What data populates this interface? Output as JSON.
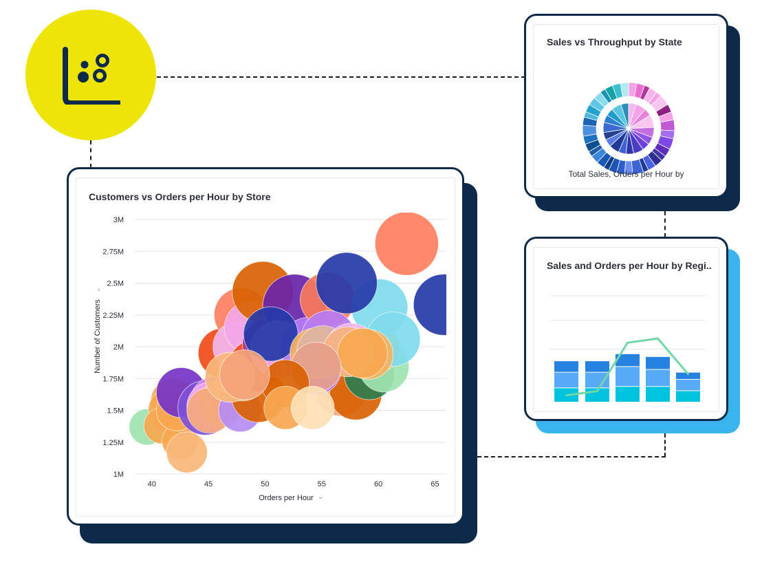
{
  "colors": {
    "badge": "#ede40a",
    "card_border": "#0d2a4a",
    "shadow_navy": "#0d2a4a",
    "shadow_sky": "#3ab4ec"
  },
  "badge": {
    "icon": "scatter-chart-icon"
  },
  "scatter_card": {
    "title": "Customers vs Orders per Hour by Store",
    "x_axis_title": "Orders per Hour",
    "y_axis_title": "Number of Customers",
    "axis_menu_icon": "chevron-down-icon"
  },
  "donut_card": {
    "title": "Sales vs Throughput by State",
    "caption": "Total Sales, Orders per Hour by"
  },
  "bar_card": {
    "title": "Sales and Orders per Hour by Regi.."
  },
  "chart_data": [
    {
      "type": "scatter",
      "title": "Customers vs Orders per Hour by Store",
      "xlabel": "Orders per Hour",
      "ylabel": "Number of Customers",
      "xlim": [
        38.5,
        66
      ],
      "ylim": [
        1,
        3
      ],
      "x_ticks": [
        40,
        45,
        50,
        55,
        60,
        65
      ],
      "y_ticks": [
        1,
        1.25,
        1.5,
        1.75,
        2,
        2.25,
        2.5,
        2.75,
        3
      ],
      "y_tick_labels": [
        "1M",
        "1.25M",
        "1.5M",
        "1.75M",
        "2M",
        "2.25M",
        "2.5M",
        "2.75M",
        "3M"
      ],
      "grid": true,
      "points": [
        {
          "x": 39.6,
          "y": 1.37,
          "size": 1.6,
          "color": "#9ee3b0"
        },
        {
          "x": 41.9,
          "y": 1.57,
          "size": 2.0,
          "color": "#f7a750"
        },
        {
          "x": 41.7,
          "y": 1.5,
          "size": 2.0,
          "color": "#f7a750"
        },
        {
          "x": 40.9,
          "y": 1.38,
          "size": 1.6,
          "color": "#f7a750"
        },
        {
          "x": 42.5,
          "y": 1.26,
          "size": 1.6,
          "color": "#f7a750"
        },
        {
          "x": 43.1,
          "y": 1.17,
          "size": 1.8,
          "color": "#f9b77a"
        },
        {
          "x": 42.2,
          "y": 1.5,
          "size": 1.8,
          "color": "#f7a750"
        },
        {
          "x": 42.6,
          "y": 1.64,
          "size": 2.2,
          "color": "#7434c4"
        },
        {
          "x": 44.7,
          "y": 1.52,
          "size": 2.4,
          "color": "#7f4fd9"
        },
        {
          "x": 45.6,
          "y": 1.57,
          "size": 2.2,
          "color": "#c387f2"
        },
        {
          "x": 45.3,
          "y": 1.53,
          "size": 2.2,
          "color": "#f3a6e8"
        },
        {
          "x": 46.1,
          "y": 1.55,
          "size": 2.0,
          "color": "#f9b77a"
        },
        {
          "x": 45.1,
          "y": 1.5,
          "size": 2.0,
          "color": "#f2a87d"
        },
        {
          "x": 47.8,
          "y": 1.5,
          "size": 1.9,
          "color": "#b58cf2"
        },
        {
          "x": 46.3,
          "y": 1.95,
          "size": 2.2,
          "color": "#f04a18"
        },
        {
          "x": 49.4,
          "y": 1.62,
          "size": 2.4,
          "color": "#d96204"
        },
        {
          "x": 48.0,
          "y": 1.77,
          "size": 2.2,
          "color": "#f9b77a"
        },
        {
          "x": 47.9,
          "y": 2.25,
          "size": 2.4,
          "color": "#ff7f61"
        },
        {
          "x": 47.6,
          "y": 2.0,
          "size": 2.2,
          "color": "#f2b5ec"
        },
        {
          "x": 48.7,
          "y": 2.15,
          "size": 2.3,
          "color": "#f3a6e8"
        },
        {
          "x": 49.8,
          "y": 2.43,
          "size": 2.7,
          "color": "#d96204"
        },
        {
          "x": 49.1,
          "y": 1.85,
          "size": 2.3,
          "color": "#f04a18"
        },
        {
          "x": 50.2,
          "y": 2.02,
          "size": 2.2,
          "color": "#a83b93"
        },
        {
          "x": 52.6,
          "y": 2.32,
          "size": 2.8,
          "color": "#6824a9"
        },
        {
          "x": 51.2,
          "y": 1.98,
          "size": 2.5,
          "color": "#f3a6e8"
        },
        {
          "x": 53.9,
          "y": 2.0,
          "size": 2.6,
          "color": "#b67bf2"
        },
        {
          "x": 55.5,
          "y": 2.37,
          "size": 2.4,
          "color": "#f87a5a"
        },
        {
          "x": 55.6,
          "y": 2.07,
          "size": 2.4,
          "color": "#b67bf2"
        },
        {
          "x": 57.0,
          "y": 1.86,
          "size": 2.2,
          "color": "#c49bf7"
        },
        {
          "x": 56.9,
          "y": 1.72,
          "size": 2.1,
          "color": "#e956c4"
        },
        {
          "x": 56.7,
          "y": 1.65,
          "size": 2.2,
          "color": "#f2a87d"
        },
        {
          "x": 58.0,
          "y": 1.63,
          "size": 2.3,
          "color": "#d96204"
        },
        {
          "x": 59.2,
          "y": 1.78,
          "size": 2.2,
          "color": "#2f7d4e"
        },
        {
          "x": 60.5,
          "y": 1.84,
          "size": 2.2,
          "color": "#9ee3b0"
        },
        {
          "x": 59.8,
          "y": 1.98,
          "size": 2.1,
          "color": "#f4b25e"
        },
        {
          "x": 60.1,
          "y": 2.31,
          "size": 2.5,
          "color": "#7fdbec"
        },
        {
          "x": 61.3,
          "y": 2.06,
          "size": 2.4,
          "color": "#7fdbec"
        },
        {
          "x": 57.2,
          "y": 2.5,
          "size": 2.7,
          "color": "#253aa8"
        },
        {
          "x": 62.5,
          "y": 2.81,
          "size": 2.8,
          "color": "#ff7f61"
        },
        {
          "x": 65.8,
          "y": 2.33,
          "size": 2.7,
          "color": "#253aa8"
        },
        {
          "x": 50.5,
          "y": 2.1,
          "size": 2.4,
          "color": "#253aa8"
        },
        {
          "x": 54.5,
          "y": 1.82,
          "size": 2.2,
          "color": "#b67bf2"
        },
        {
          "x": 54.4,
          "y": 1.95,
          "size": 2.2,
          "color": "#f4b25e"
        },
        {
          "x": 55.1,
          "y": 1.96,
          "size": 2.3,
          "color": "#dcb4a3"
        },
        {
          "x": 57.6,
          "y": 1.98,
          "size": 2.3,
          "color": "#f2b5ec"
        },
        {
          "x": 59.1,
          "y": 1.94,
          "size": 2.2,
          "color": "#f4b25e"
        },
        {
          "x": 57.3,
          "y": 1.96,
          "size": 2.2,
          "color": "#f5b27e"
        },
        {
          "x": 58.6,
          "y": 1.95,
          "size": 2.2,
          "color": "#f6a850"
        },
        {
          "x": 54.5,
          "y": 1.84,
          "size": 2.2,
          "color": "#e5a08a"
        },
        {
          "x": 51.8,
          "y": 1.71,
          "size": 2.1,
          "color": "#d96204"
        },
        {
          "x": 51.8,
          "y": 1.52,
          "size": 1.9,
          "color": "#f7a750"
        },
        {
          "x": 54.2,
          "y": 1.52,
          "size": 1.9,
          "color": "#fde0b5"
        },
        {
          "x": 46.9,
          "y": 1.76,
          "size": 2.2,
          "color": "#f9b77a"
        },
        {
          "x": 48.2,
          "y": 1.78,
          "size": 2.2,
          "color": "#f3a47a"
        }
      ]
    },
    {
      "type": "pie",
      "title": "Sales vs Throughput by State",
      "xlabel": "Total Sales, Orders per Hour by",
      "rings": [
        {
          "name": "outer",
          "values": [
            3,
            3,
            2,
            3,
            2,
            4,
            3,
            3,
            4,
            3,
            4,
            3,
            2,
            3,
            3,
            2,
            4,
            3,
            3,
            3,
            2,
            3,
            3,
            2,
            3,
            3,
            4,
            3,
            2,
            3,
            3,
            3,
            2,
            3,
            3,
            3
          ],
          "colors": [
            "#f5a3e6",
            "#ea6fd0",
            "#b2349e",
            "#f7b7ee",
            "#f5a3e6",
            "#f9c6f1",
            "#8e1f83",
            "#f5a3e6",
            "#c05ad4",
            "#a56df2",
            "#7e48e5",
            "#5d2db8",
            "#3e31a8",
            "#2e2f94",
            "#4b63e2",
            "#1f3a99",
            "#3e63d4",
            "#6a8df0",
            "#2c5dcc",
            "#1b56b5",
            "#0d3d8a",
            "#1a58b8",
            "#3a86d8",
            "#1f5ea6",
            "#0b4f8e",
            "#1c72c1",
            "#4f8fe0",
            "#1a64b3",
            "#49b5e0",
            "#22a3cc",
            "#5ec6e6",
            "#8cdcf0",
            "#1794b3",
            "#17a2a8",
            "#3abed0",
            "#b3e8f0"
          ]
        },
        {
          "name": "inner",
          "values": [
            3,
            4,
            3,
            5,
            4,
            3,
            3,
            4,
            3,
            3,
            4,
            3,
            3,
            4,
            3,
            3,
            4,
            3
          ],
          "colors": [
            "#f7b7ee",
            "#f5a3e6",
            "#e584d6",
            "#f9c6f1",
            "#c46ee0",
            "#8e54e8",
            "#6b3fd9",
            "#4b3cc4",
            "#2f36a8",
            "#3e63d4",
            "#1f3a99",
            "#5b7ce6",
            "#24408e",
            "#3b6bd0",
            "#2a7fd0",
            "#1f9bd0",
            "#58c6e0",
            "#2a8fb8"
          ]
        }
      ]
    },
    {
      "type": "bar",
      "title": "Sales and Orders per Hour by Regi..",
      "categories": [
        "1",
        "2",
        "3",
        "4",
        "5"
      ],
      "series": [
        {
          "values": [
            10,
            10,
            11,
            11,
            8
          ],
          "color": "#00c4de"
        },
        {
          "values": [
            11,
            11,
            14,
            12,
            8
          ],
          "color": "#57aaf5"
        },
        {
          "values": [
            8,
            8,
            9,
            9,
            5
          ],
          "color": "#2582e0"
        }
      ],
      "line": {
        "values": [
          5,
          8,
          42,
          45,
          20
        ],
        "color": "#6fd8a8"
      },
      "ylim": [
        0,
        75
      ]
    }
  ]
}
